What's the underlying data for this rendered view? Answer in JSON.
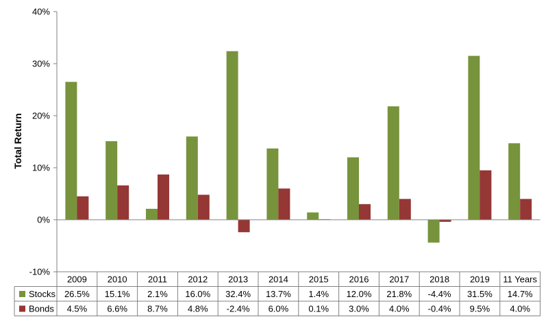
{
  "chart_data": {
    "type": "bar",
    "title": "",
    "xlabel": "",
    "ylabel": "Total Return",
    "ylim": [
      -10,
      40
    ],
    "y_ticks": [
      -10,
      0,
      10,
      20,
      30,
      40
    ],
    "y_tick_labels": [
      "-10%",
      "0%",
      "10%",
      "20%",
      "30%",
      "40%"
    ],
    "grid": false,
    "legend": "data-table",
    "categories": [
      "2009",
      "2010",
      "2011",
      "2012",
      "2013",
      "2014",
      "2015",
      "2016",
      "2017",
      "2018",
      "2019",
      "11 Years"
    ],
    "series": [
      {
        "name": "Stocks",
        "color": "#77933C",
        "values": [
          26.5,
          15.1,
          2.1,
          16.0,
          32.4,
          13.7,
          1.4,
          12.0,
          21.8,
          -4.4,
          31.5,
          14.7
        ],
        "labels": [
          "26.5%",
          "15.1%",
          "2.1%",
          "16.0%",
          "32.4%",
          "13.7%",
          "1.4%",
          "12.0%",
          "21.8%",
          "-4.4%",
          "31.5%",
          "14.7%"
        ]
      },
      {
        "name": "Bonds",
        "color": "#953735",
        "values": [
          4.5,
          6.6,
          8.7,
          4.8,
          -2.4,
          6.0,
          0.1,
          3.0,
          4.0,
          -0.4,
          9.5,
          4.0
        ],
        "labels": [
          "4.5%",
          "6.6%",
          "8.7%",
          "4.8%",
          "-2.4%",
          "6.0%",
          "0.1%",
          "3.0%",
          "4.0%",
          "-0.4%",
          "9.5%",
          "4.0%"
        ]
      }
    ]
  }
}
